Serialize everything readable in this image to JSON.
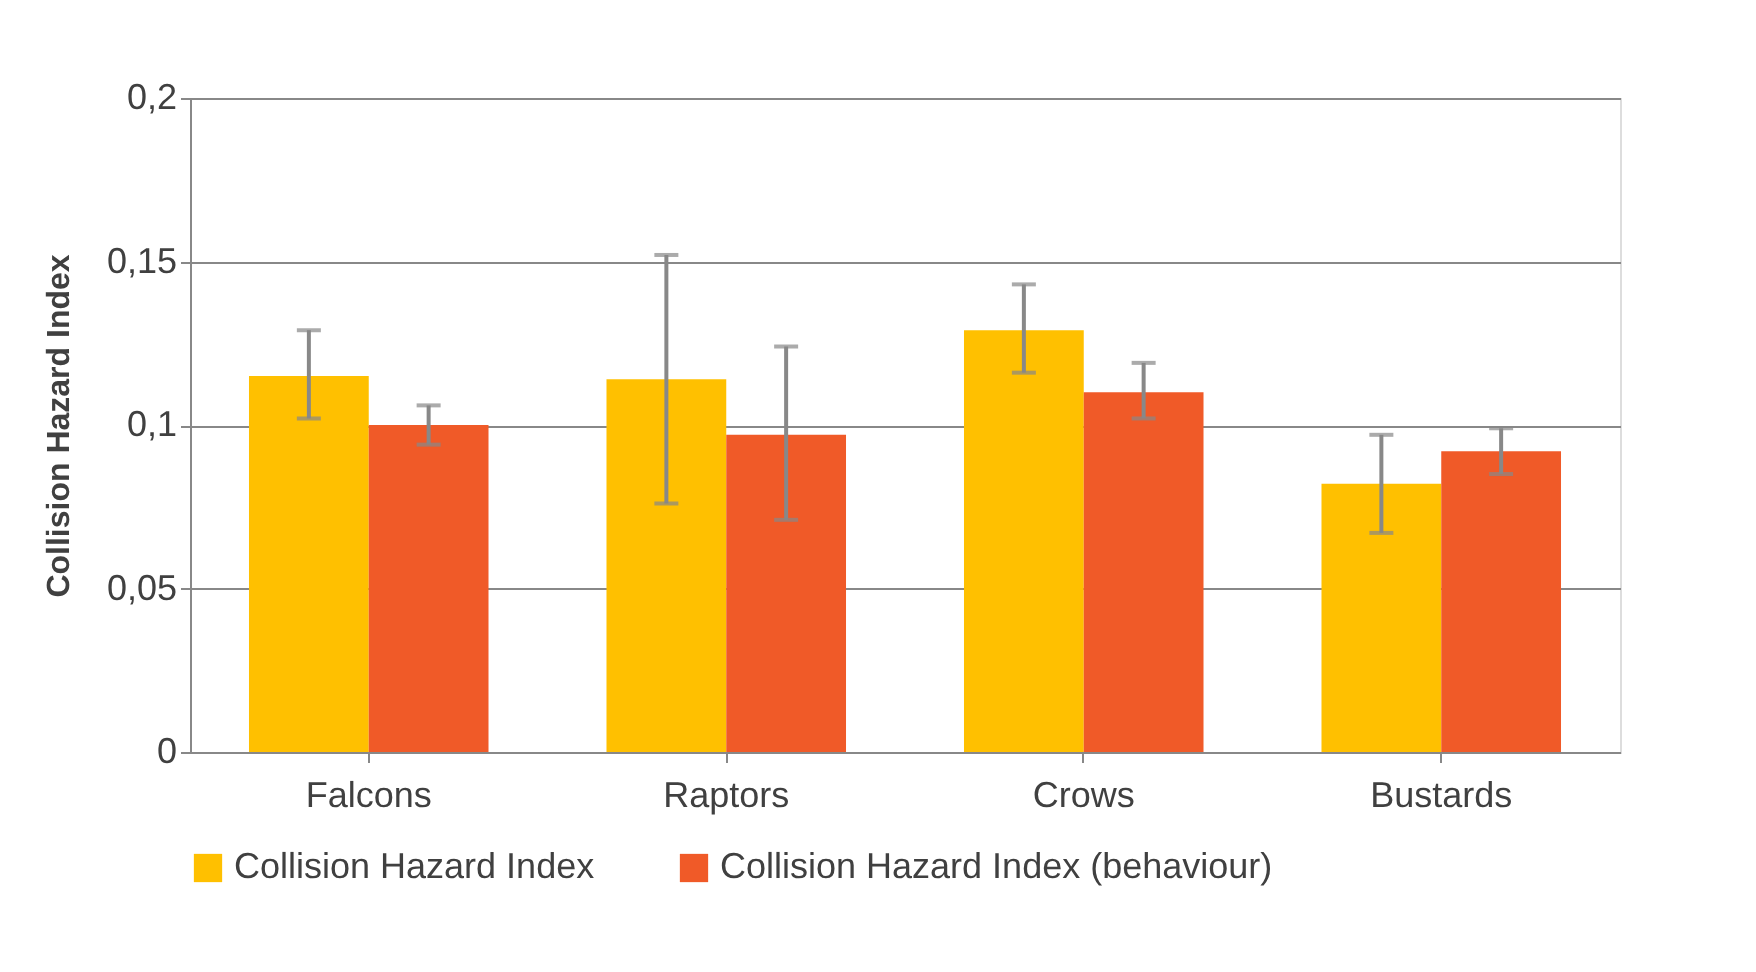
{
  "chart_data": {
    "type": "bar",
    "ylabel": "Collision Hazard Index",
    "categories": [
      "Falcons",
      "Raptors",
      "Crows",
      "Bustards"
    ],
    "series": [
      {
        "name": "Collision Hazard Index",
        "color": "#ffc000",
        "values": [
          0.115,
          0.114,
          0.129,
          0.082
        ],
        "errors": [
          [
            0.102,
            0.129
          ],
          [
            0.076,
            0.152
          ],
          [
            0.116,
            0.143
          ],
          [
            0.067,
            0.097
          ]
        ]
      },
      {
        "name": "Collision Hazard Index (behaviour)",
        "color": "#f05a28",
        "values": [
          0.1,
          0.097,
          0.11,
          0.092
        ],
        "errors": [
          [
            0.094,
            0.106
          ],
          [
            0.071,
            0.124
          ],
          [
            0.102,
            0.119
          ],
          [
            0.085,
            0.099
          ]
        ]
      }
    ],
    "ylim": [
      0,
      0.2
    ],
    "yticks": [
      {
        "value": 0,
        "label": "0"
      },
      {
        "value": 0.05,
        "label": "0,05"
      },
      {
        "value": 0.1,
        "label": "0,1"
      },
      {
        "value": 0.15,
        "label": "0,15"
      },
      {
        "value": 0.2,
        "label": "0,2"
      }
    ],
    "grid": "y",
    "legend": "bottom"
  }
}
